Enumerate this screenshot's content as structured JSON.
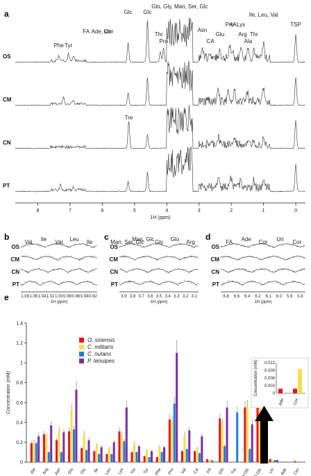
{
  "panel_a": {
    "letter": "a",
    "rows": [
      "OS",
      "CM",
      "CN",
      "PT"
    ],
    "xlabel": "1H (ppm)",
    "xticks": [
      8,
      7,
      6,
      5,
      4,
      3,
      2,
      1,
      0
    ],
    "labels": [
      {
        "text": "Phe",
        "ppm": 7.35,
        "row": 0
      },
      {
        "text": "Tyr",
        "ppm": 7.05,
        "row": 0
      },
      {
        "text": "FA",
        "ppm": 6.5,
        "row": 0
      },
      {
        "text": "Ade, Cor",
        "ppm": 6.0,
        "row": 0
      },
      {
        "text": "Uri",
        "ppm": 5.85,
        "row": 0
      },
      {
        "text": "Glc",
        "ppm": 5.2,
        "row": 0
      },
      {
        "text": "Glc",
        "ppm": 4.6,
        "row": 0
      },
      {
        "text": "Glo, Gly, Man, Ser, Glc",
        "ppm": 3.6,
        "row": 0
      },
      {
        "text": "Thr",
        "ppm": 4.25,
        "row": 0
      },
      {
        "text": "Pro",
        "ppm": 4.1,
        "row": 0
      },
      {
        "text": "Asn",
        "ppm": 2.9,
        "row": 0
      },
      {
        "text": "CA",
        "ppm": 2.65,
        "row": 0
      },
      {
        "text": "Glu",
        "ppm": 2.35,
        "row": 0
      },
      {
        "text": "Pro",
        "ppm": 2.05,
        "row": 0
      },
      {
        "text": "AA",
        "ppm": 1.95,
        "row": 0
      },
      {
        "text": "Lys",
        "ppm": 1.7,
        "row": 0
      },
      {
        "text": "Arg",
        "ppm": 1.65,
        "row": 0
      },
      {
        "text": "Ala",
        "ppm": 1.48,
        "row": 0
      },
      {
        "text": "Thr",
        "ppm": 1.3,
        "row": 0
      },
      {
        "text": "Ile, Leu, Val",
        "ppm": 1.0,
        "row": 0
      },
      {
        "text": "TSP",
        "ppm": 0.0,
        "row": 0
      },
      {
        "text": "Tre",
        "ppm": 5.18,
        "row": 2
      }
    ]
  },
  "panel_b": {
    "letter": "b",
    "rows": [
      "OS",
      "CM",
      "CN",
      "PT"
    ],
    "xlabel": "1H (ppm)",
    "xticks": [
      "1.08",
      "1.06",
      "1.04",
      "1.02",
      "1.00",
      "0.98",
      "0.96",
      "0.94",
      "0.92"
    ],
    "labels": [
      "Val",
      "Ile",
      "Val",
      "Leu",
      "Ile"
    ]
  },
  "panel_c": {
    "letter": "c",
    "rows": [
      "OS",
      "CM",
      "CN",
      "PT"
    ],
    "xlabel": "1H (ppm)",
    "xticks": [
      "3.9",
      "3.8",
      "3.7",
      "3.6",
      "3.5",
      "3.4",
      "3.3",
      "3.2",
      "3.1"
    ],
    "labels": [
      "Man, Ser, Glc",
      "Man, Glc",
      "Gly",
      "Glo",
      "Arg"
    ]
  },
  "panel_d": {
    "letter": "d",
    "rows": [
      "OS",
      "CM",
      "CN",
      "PT"
    ],
    "xlabel": "1H (ppm)",
    "xticks": [
      "6.8",
      "6.6",
      "6.4",
      "6.2",
      "6.1",
      "6.0",
      "5.9",
      "5.8"
    ],
    "labels": [
      "FA",
      "Ade",
      "Cor",
      "Uri",
      "Cor"
    ]
  },
  "panel_e": {
    "letter": "e",
    "chart_data": [
      {
        "type": "bar",
        "ylabel": "Concentration (mM)",
        "ylim": [
          0,
          1.4
        ],
        "yticks": [
          "0",
          "0.2",
          "0.4",
          "0.6",
          "0.8",
          "1",
          "1.2",
          "1.4"
        ],
        "categories": [
          "Ala",
          "Arg",
          "Asn",
          "Glu",
          "Gly",
          "Ile",
          "Leu",
          "Lys",
          "Thr",
          "Tyr",
          "Phe",
          "Pro",
          "Val",
          "CA",
          "FA",
          "Glo",
          "Tre",
          "α-Glc",
          "β-Glc",
          "Uri",
          "Ade",
          "Cor"
        ],
        "legend_position": "top-left",
        "series": [
          {
            "name": "O. sinensis",
            "color": "#e8141c",
            "values": [
              0.19,
              0.28,
              0.22,
              0.31,
              0.14,
              0.11,
              0.08,
              0.31,
              0.1,
              0.06,
              0.05,
              0.43,
              0.11,
              0.11,
              0.03,
              0.44,
              0.0,
              0.55,
              0.77,
              0.03,
              0.0,
              0.01
            ]
          },
          {
            "name": "C. militaris",
            "color": "#f4e04d",
            "values": [
              0.2,
              0.26,
              0.32,
              0.53,
              0.28,
              0.17,
              0.14,
              0.27,
              0.19,
              0.12,
              0.15,
              0.42,
              0.27,
              0.14,
              0.02,
              0.39,
              0.0,
              0.56,
              0.89,
              0.02,
              0.0,
              0.01
            ]
          },
          {
            "name": "C. nutans",
            "color": "#1f7fd6",
            "values": [
              0.19,
              0.1,
              0.1,
              0.33,
              0.12,
              0.08,
              0.08,
              0.21,
              0.1,
              0.05,
              0.1,
              0.59,
              0.13,
              0.09,
              0.02,
              0.16,
              0.5,
              0.13,
              0.16,
              0.02,
              0.0,
              0.0
            ]
          },
          {
            "name": "P. tenuipes",
            "color": "#7b2fa0",
            "values": [
              0.26,
              0.37,
              0.3,
              0.73,
              0.22,
              0.15,
              0.2,
              0.55,
              0.16,
              0.11,
              0.15,
              1.1,
              0.32,
              0.26,
              0.0,
              0.55,
              0.0,
              0.38,
              0.56,
              0.02,
              0.0,
              0.0
            ]
          }
        ]
      },
      {
        "type": "bar",
        "ylabel": "Concentration (mM)",
        "ylim": [
          0,
          0.012
        ],
        "yticks": [
          "0",
          "0.003",
          "0.006",
          "0.009",
          "0.012"
        ],
        "categories": [
          "Ade",
          "Cor"
        ],
        "series": [
          {
            "name": "O. sinensis",
            "color": "#e8141c",
            "values": [
              0.0018,
              0.0018
            ]
          },
          {
            "name": "C. militaris",
            "color": "#f4e04d",
            "values": [
              0.0,
              0.0095
            ]
          }
        ]
      }
    ]
  }
}
